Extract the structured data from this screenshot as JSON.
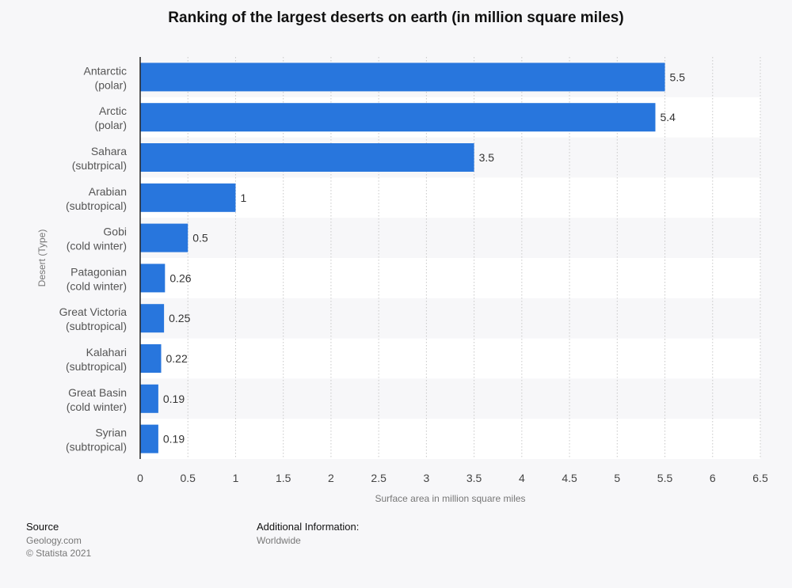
{
  "chart_data": {
    "type": "bar",
    "orientation": "horizontal",
    "title": "Ranking of the largest deserts on earth (in million square miles)",
    "xlabel": "Surface area in million square miles",
    "ylabel": "Desert (Type)",
    "categories": [
      {
        "name": "Antarctic",
        "type": "(polar)"
      },
      {
        "name": "Arctic",
        "type": "(polar)"
      },
      {
        "name": "Sahara",
        "type": "(subtrpical)"
      },
      {
        "name": "Arabian",
        "type": "(subtropical)"
      },
      {
        "name": "Gobi",
        "type": "(cold winter)"
      },
      {
        "name": "Patagonian",
        "type": "(cold winter)"
      },
      {
        "name": "Great Victoria",
        "type": "(subtropical)"
      },
      {
        "name": "Kalahari",
        "type": "(subtropical)"
      },
      {
        "name": "Great Basin",
        "type": "(cold winter)"
      },
      {
        "name": "Syrian",
        "type": "(subtropical)"
      }
    ],
    "values": [
      5.5,
      5.4,
      3.5,
      1,
      0.5,
      0.26,
      0.25,
      0.22,
      0.19,
      0.19
    ],
    "value_labels": [
      "5.5",
      "5.4",
      "3.5",
      "1",
      "0.5",
      "0.26",
      "0.25",
      "0.22",
      "0.19",
      "0.19"
    ],
    "xlim": [
      0,
      6.5
    ],
    "xticks": [
      "0",
      "0.5",
      "1",
      "1.5",
      "2",
      "2.5",
      "3",
      "3.5",
      "4",
      "4.5",
      "5",
      "5.5",
      "6",
      "6.5"
    ],
    "grid": "vertical dashed",
    "bar_color": "#2876dd"
  },
  "footer": {
    "source_heading": "Source",
    "source_lines": [
      "Geology.com",
      "© Statista 2021"
    ],
    "info_heading": "Additional Information:",
    "info_lines": [
      "Worldwide"
    ]
  }
}
